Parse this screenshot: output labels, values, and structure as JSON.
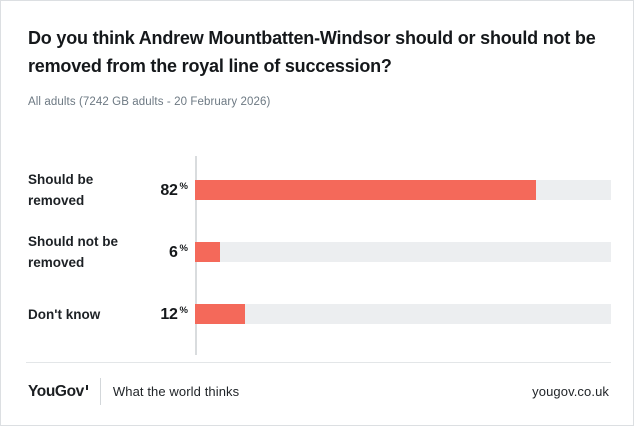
{
  "header": {
    "title": "Do you think Andrew Mountbatten-Windsor should or should not be removed from the royal line of succession?",
    "subtitle": "All adults (7242 GB adults - 20 February 2026)"
  },
  "chart_data": {
    "type": "bar",
    "orientation": "horizontal",
    "categories": [
      "Should be removed",
      "Should not be removed",
      "Don't know"
    ],
    "values": [
      82,
      6,
      12
    ],
    "unit": "%",
    "xlim": [
      0,
      100
    ],
    "title": "Do you think Andrew Mountbatten-Windsor should or should not be removed from the royal line of succession?",
    "xlabel": "",
    "ylabel": "",
    "grid": false,
    "legend": false,
    "colors": {
      "bar_fill": "#f4695a",
      "bar_track": "#eceef0",
      "axis_line": "#d9dcde"
    }
  },
  "footer": {
    "logo": "YouGov",
    "tagline": "What the world thinks",
    "site": "yougov.co.uk"
  }
}
